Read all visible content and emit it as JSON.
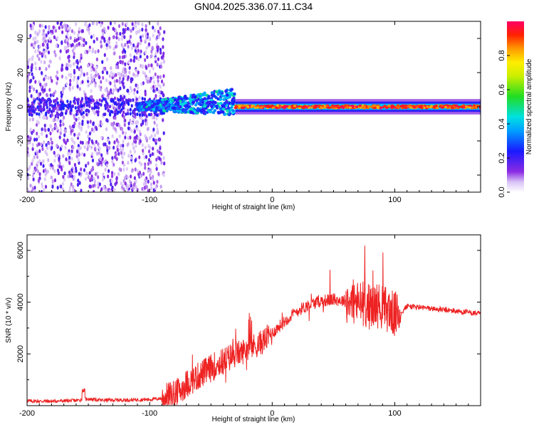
{
  "title": "GN04.2025.336.07.11.C34",
  "chart_data": [
    {
      "type": "heatmap",
      "name": "spectrogram",
      "xlabel": "Height of straight line (km)",
      "ylabel": "Frequency (Hz)",
      "xlim": [
        -200,
        170
      ],
      "ylim": [
        -50,
        50
      ],
      "xticks": [
        "-200",
        "-100",
        "0",
        "100"
      ],
      "xtick_values": [
        -200,
        -100,
        0,
        100
      ],
      "yticks": [
        "40",
        "20",
        "0",
        "-20",
        "-40"
      ],
      "ytick_values": [
        40,
        20,
        0,
        -20,
        -40
      ],
      "colorbar": {
        "label": "Normalized spectral amplitude",
        "range": [
          0,
          1
        ],
        "ticks": [
          "0.0",
          "0.2",
          "0.4",
          "0.6",
          "0.8"
        ],
        "tick_values": [
          0.0,
          0.2,
          0.4,
          0.6,
          0.8
        ]
      },
      "regions": [
        {
          "x_range": [
            -200,
            -88
          ],
          "freq_range": [
            -50,
            50
          ],
          "amplitude": [
            0.05,
            0.2
          ],
          "description": "broadband noise"
        },
        {
          "x_range": [
            -110,
            -30
          ],
          "freq_center": 3,
          "freq_halfwidth": 6,
          "amplitude": [
            0.2,
            0.5
          ]
        },
        {
          "x_range": [
            -30,
            170
          ],
          "freq_center": 0,
          "freq_halfwidth": 3,
          "amplitude": [
            0.8,
            1.0
          ]
        }
      ]
    },
    {
      "type": "line",
      "name": "snr",
      "xlabel": "Height of straight line (km)",
      "ylabel": "SNR (10 * v/v)",
      "xlim": [
        -200,
        170
      ],
      "ylim": [
        0,
        6600
      ],
      "xticks": [
        "-200",
        "-100",
        "0",
        "100"
      ],
      "xtick_values": [
        -200,
        -100,
        0,
        100
      ],
      "yticks": [
        "2000",
        "4000",
        "6000"
      ],
      "ytick_values": [
        2000,
        4000,
        6000
      ],
      "color": "#ee2222",
      "series": [
        {
          "name": "SNR",
          "x": [
            -200,
            -180,
            -160,
            -150,
            -140,
            -120,
            -100,
            -90,
            -80,
            -75,
            -70,
            -65,
            -60,
            -55,
            -50,
            -45,
            -40,
            -35,
            -30,
            -25,
            -20,
            -15,
            -10,
            -5,
            0,
            10,
            20,
            30,
            40,
            50,
            60,
            65,
            70,
            75,
            80,
            85,
            90,
            95,
            100,
            105,
            110,
            120,
            130,
            140,
            150,
            160,
            170
          ],
          "y": [
            180,
            170,
            200,
            260,
            210,
            220,
            240,
            280,
            450,
            600,
            850,
            1000,
            1150,
            1300,
            1450,
            1600,
            1700,
            1850,
            2000,
            2050,
            2250,
            2300,
            2400,
            2600,
            2800,
            3250,
            3650,
            3900,
            4050,
            4100,
            4050,
            4000,
            3950,
            3950,
            3800,
            3900,
            3800,
            3700,
            3500,
            3600,
            3850,
            3800,
            3750,
            3700,
            3650,
            3600,
            3550
          ]
        }
      ]
    }
  ]
}
